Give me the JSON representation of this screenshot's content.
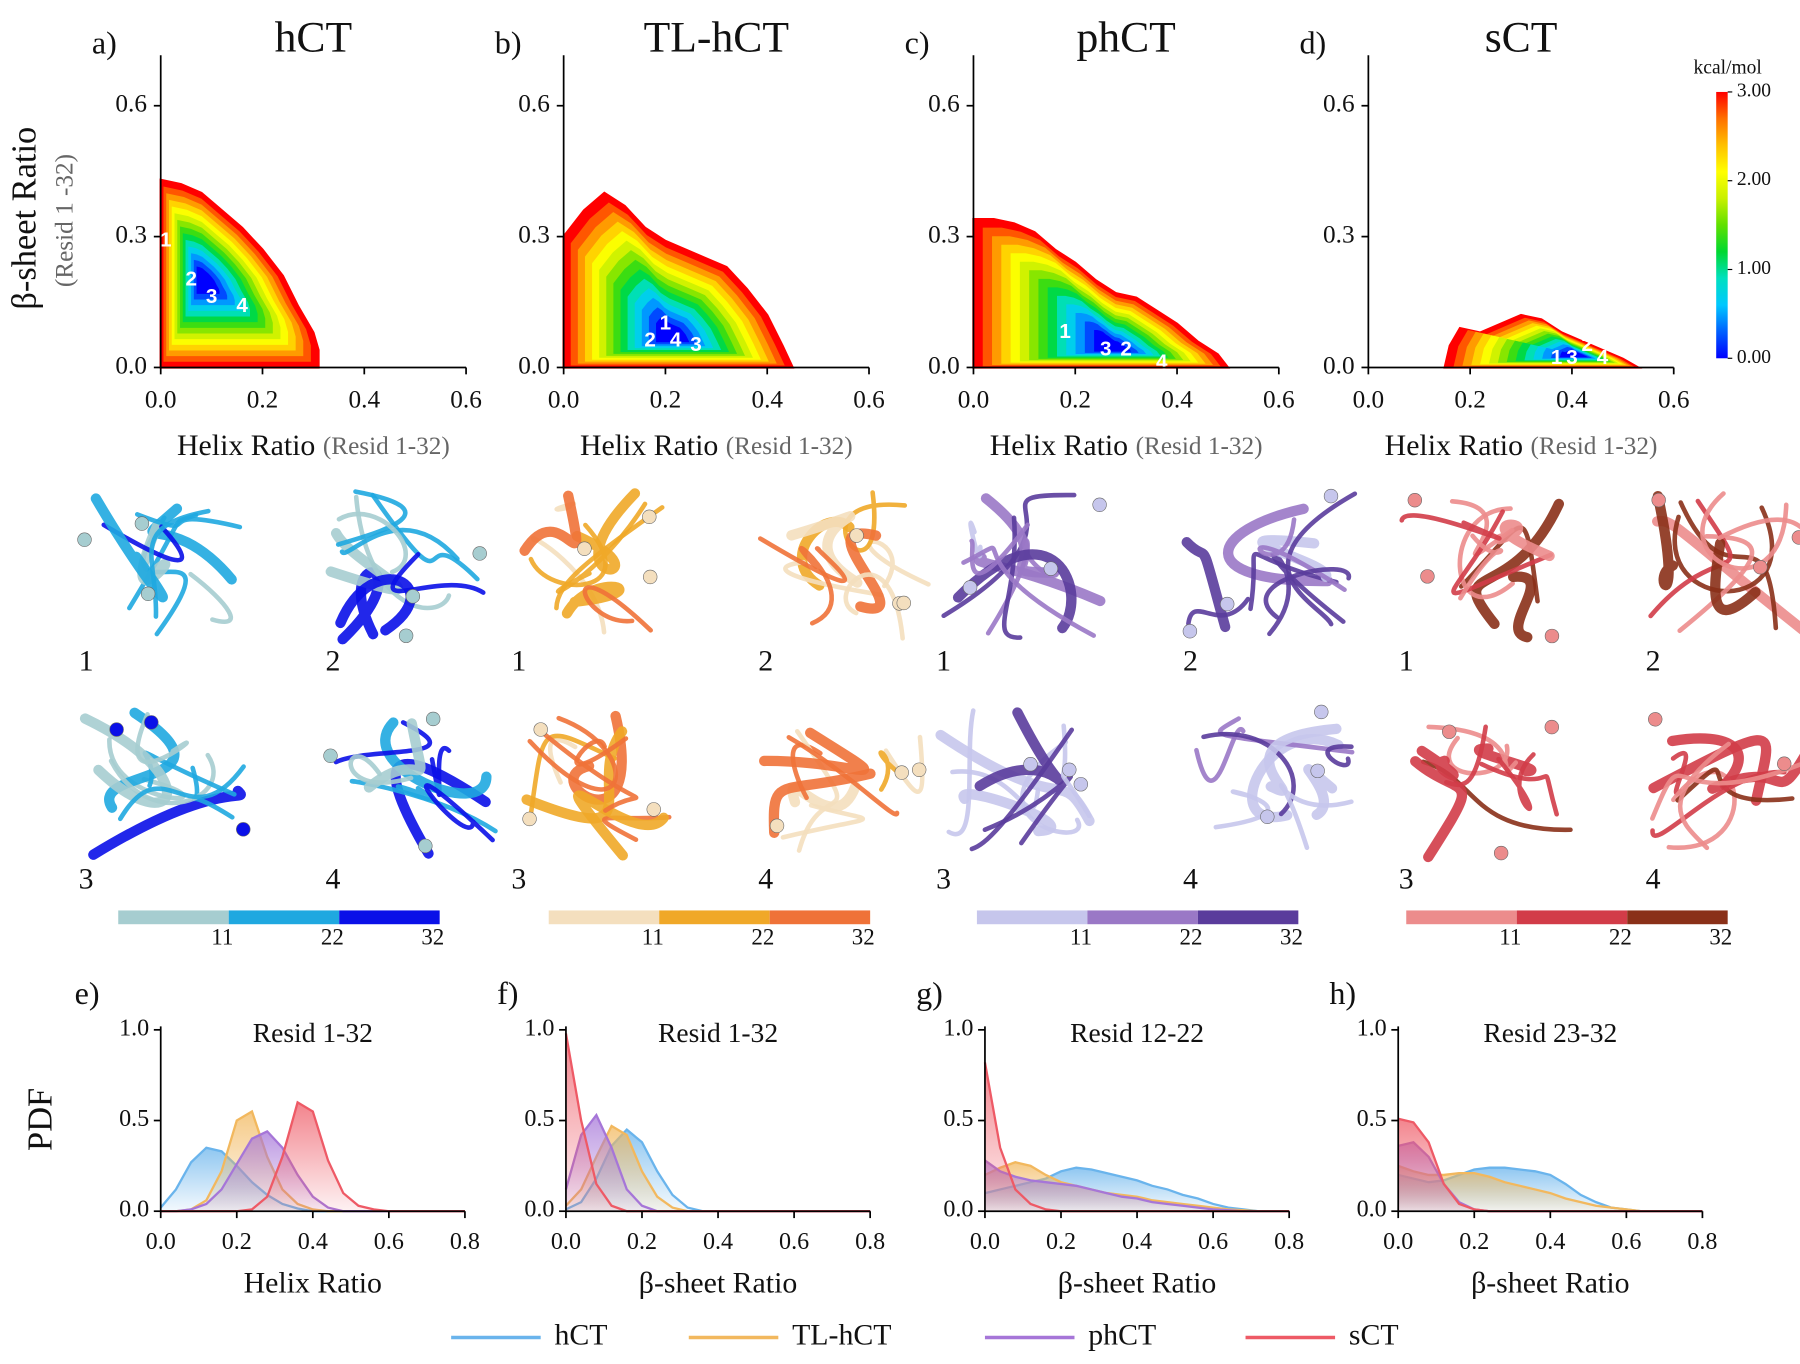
{
  "chart_data": [
    {
      "type": "contour",
      "xlabel": "Helix Ratio",
      "xlabel_note": "(Resid 1-32)",
      "ylabel": "β-sheet Ratio",
      "ylabel_note": "(Resid 1 -32)",
      "xlim": [
        0,
        0.6
      ],
      "ylim": [
        0,
        0.7
      ],
      "xticks": [
        {
          "value": 0,
          "label": "0.0"
        },
        0.2,
        0.4,
        0.6
      ],
      "yticks": [
        {
          "value": 0,
          "label": "0.0"
        },
        0.3,
        0.6
      ],
      "colorbar": {
        "label": "kcal/mol",
        "lim": [
          0,
          3
        ],
        "ticks": [
          {
            "value": 0,
            "label": "0.00"
          },
          {
            "value": 1,
            "label": "1.00"
          },
          {
            "value": 2,
            "label": "2.00"
          },
          {
            "value": 3,
            "label": "3.00"
          }
        ],
        "colormap": [
          "#0000ff",
          "#0060ff",
          "#00c8ff",
          "#00e0c0",
          "#00d830",
          "#60e000",
          "#c8f000",
          "#ffff00",
          "#ffc000",
          "#ff7000",
          "#ff0000"
        ]
      },
      "panels": [
        {
          "label": "a)",
          "title": "hCT",
          "boundary": [
            [
              0,
              0.43
            ],
            [
              0.04,
              0.42
            ],
            [
              0.08,
              0.4
            ],
            [
              0.12,
              0.36
            ],
            [
              0.16,
              0.32
            ],
            [
              0.2,
              0.27
            ],
            [
              0.24,
              0.21
            ],
            [
              0.27,
              0.14
            ],
            [
              0.3,
              0.08
            ],
            [
              0.31,
              0.04
            ],
            [
              0.31,
              0
            ],
            [
              0,
              0
            ]
          ],
          "minima": [
            {
              "label": "1",
              "x": 0.01,
              "y": 0.29
            },
            {
              "label": "2",
              "x": 0.06,
              "y": 0.2
            },
            {
              "label": "3",
              "x": 0.1,
              "y": 0.16
            },
            {
              "label": "4",
              "x": 0.16,
              "y": 0.14
            }
          ]
        },
        {
          "label": "b)",
          "title": "TL-hCT",
          "boundary": [
            [
              0,
              0.3
            ],
            [
              0.04,
              0.36
            ],
            [
              0.08,
              0.4
            ],
            [
              0.12,
              0.37
            ],
            [
              0.16,
              0.32
            ],
            [
              0.2,
              0.29
            ],
            [
              0.24,
              0.27
            ],
            [
              0.28,
              0.25
            ],
            [
              0.32,
              0.23
            ],
            [
              0.36,
              0.18
            ],
            [
              0.4,
              0.12
            ],
            [
              0.43,
              0.05
            ],
            [
              0.45,
              0
            ],
            [
              0,
              0
            ]
          ],
          "minima": [
            {
              "label": "1",
              "x": 0.2,
              "y": 0.1
            },
            {
              "label": "2",
              "x": 0.17,
              "y": 0.06
            },
            {
              "label": "4",
              "x": 0.22,
              "y": 0.06
            },
            {
              "label": "3",
              "x": 0.26,
              "y": 0.05
            }
          ]
        },
        {
          "label": "c)",
          "title": "phCT",
          "boundary": [
            [
              0,
              0.34
            ],
            [
              0.04,
              0.34
            ],
            [
              0.08,
              0.33
            ],
            [
              0.12,
              0.31
            ],
            [
              0.16,
              0.27
            ],
            [
              0.2,
              0.24
            ],
            [
              0.24,
              0.2
            ],
            [
              0.28,
              0.17
            ],
            [
              0.32,
              0.16
            ],
            [
              0.36,
              0.13
            ],
            [
              0.4,
              0.1
            ],
            [
              0.44,
              0.06
            ],
            [
              0.48,
              0.03
            ],
            [
              0.5,
              0
            ],
            [
              0,
              0
            ]
          ],
          "minima": [
            {
              "label": "1",
              "x": 0.18,
              "y": 0.08
            },
            {
              "label": "3",
              "x": 0.26,
              "y": 0.04
            },
            {
              "label": "2",
              "x": 0.3,
              "y": 0.04
            },
            {
              "label": "4",
              "x": 0.37,
              "y": 0.01
            }
          ]
        },
        {
          "label": "d)",
          "title": "sCT",
          "boundary": [
            [
              0.15,
              0
            ],
            [
              0.16,
              0.05
            ],
            [
              0.18,
              0.09
            ],
            [
              0.22,
              0.08
            ],
            [
              0.26,
              0.1
            ],
            [
              0.3,
              0.12
            ],
            [
              0.34,
              0.11
            ],
            [
              0.38,
              0.08
            ],
            [
              0.42,
              0.06
            ],
            [
              0.46,
              0.04
            ],
            [
              0.5,
              0.02
            ],
            [
              0.53,
              0
            ]
          ],
          "minima": [
            {
              "label": "1",
              "x": 0.37,
              "y": 0.02
            },
            {
              "label": "3",
              "x": 0.4,
              "y": 0.02
            },
            {
              "label": "2",
              "x": 0.43,
              "y": 0.05
            },
            {
              "label": "4",
              "x": 0.46,
              "y": 0.02
            }
          ]
        }
      ]
    },
    {
      "type": "structures",
      "labels": [
        "1",
        "2",
        "3",
        "4"
      ],
      "residue_lim": [
        0,
        32
      ],
      "residue_ticks": [
        11,
        22,
        32
      ],
      "panels": [
        {
          "colors": [
            "#a6cdd0",
            "#1fa8e0",
            "#0a10e8"
          ]
        },
        {
          "colors": [
            "#f4dfbe",
            "#f0a828",
            "#ef7238"
          ]
        },
        {
          "colors": [
            "#c6c6ec",
            "#9a78c6",
            "#5a3c9c"
          ]
        },
        {
          "colors": [
            "#ec8c8c",
            "#d23c48",
            "#8a3018"
          ]
        }
      ]
    },
    {
      "type": "area",
      "ylabel": "PDF",
      "xlim": [
        0,
        0.8
      ],
      "ylim": [
        0,
        1
      ],
      "xticks": [
        {
          "value": 0,
          "label": "0.0"
        },
        0.2,
        0.4,
        0.6,
        0.8
      ],
      "yticks": [
        {
          "value": 0,
          "label": "0.0"
        },
        0.5,
        {
          "value": 1,
          "label": "1.0"
        }
      ],
      "x": [
        0,
        0.04,
        0.08,
        0.12,
        0.16,
        0.2,
        0.24,
        0.28,
        0.32,
        0.36,
        0.4,
        0.44,
        0.48,
        0.52,
        0.56,
        0.6,
        0.64,
        0.68,
        0.72,
        0.76,
        0.8
      ],
      "series": [
        {
          "name": "hCT",
          "color": "#6ab4ec"
        },
        {
          "name": "TL-hCT",
          "color": "#f2b85e"
        },
        {
          "name": "phCT",
          "color": "#a676d8"
        },
        {
          "name": "sCT",
          "color": "#ee5a66"
        }
      ],
      "panels": [
        {
          "label": "e)",
          "title": "Resid 1-32",
          "xlabel": "Helix Ratio",
          "values": [
            [
              0.02,
              0.12,
              0.27,
              0.35,
              0.33,
              0.25,
              0.16,
              0.09,
              0.04,
              0.015,
              0,
              0,
              0,
              0,
              0,
              0,
              0,
              0,
              0,
              0,
              0
            ],
            [
              0,
              0,
              0.01,
              0.06,
              0.22,
              0.5,
              0.55,
              0.3,
              0.12,
              0.04,
              0.01,
              0,
              0,
              0,
              0,
              0,
              0,
              0,
              0,
              0,
              0
            ],
            [
              0,
              0,
              0.01,
              0.04,
              0.12,
              0.26,
              0.4,
              0.44,
              0.35,
              0.2,
              0.08,
              0.02,
              0,
              0,
              0,
              0,
              0,
              0,
              0,
              0,
              0
            ],
            [
              0,
              0,
              0,
              0,
              0,
              0,
              0.01,
              0.08,
              0.3,
              0.6,
              0.55,
              0.28,
              0.1,
              0.03,
              0.01,
              0,
              0,
              0,
              0,
              0,
              0
            ]
          ]
        },
        {
          "label": "f)",
          "title": "Resid 1-32",
          "xlabel": "β-sheet Ratio",
          "values": [
            [
              0.01,
              0.05,
              0.18,
              0.36,
              0.45,
              0.38,
              0.22,
              0.09,
              0.02,
              0,
              0,
              0,
              0,
              0,
              0,
              0,
              0,
              0,
              0,
              0,
              0
            ],
            [
              0.03,
              0.12,
              0.3,
              0.47,
              0.42,
              0.22,
              0.08,
              0.02,
              0,
              0,
              0,
              0,
              0,
              0,
              0,
              0,
              0,
              0,
              0,
              0,
              0
            ],
            [
              0.12,
              0.42,
              0.53,
              0.35,
              0.12,
              0.03,
              0,
              0,
              0,
              0,
              0,
              0,
              0,
              0,
              0,
              0,
              0,
              0,
              0,
              0,
              0
            ],
            [
              0.98,
              0.5,
              0.15,
              0.03,
              0,
              0,
              0,
              0,
              0,
              0,
              0,
              0,
              0,
              0,
              0,
              0,
              0,
              0,
              0,
              0,
              0
            ]
          ]
        },
        {
          "label": "g)",
          "title": "Resid 12-22",
          "xlabel": "β-sheet Ratio",
          "values": [
            [
              0.1,
              0.12,
              0.14,
              0.16,
              0.18,
              0.22,
              0.24,
              0.23,
              0.21,
              0.19,
              0.17,
              0.14,
              0.12,
              0.09,
              0.07,
              0.04,
              0.02,
              0.01,
              0,
              0,
              0
            ],
            [
              0.2,
              0.24,
              0.27,
              0.25,
              0.2,
              0.16,
              0.14,
              0.12,
              0.1,
              0.09,
              0.08,
              0.06,
              0.05,
              0.04,
              0.03,
              0.02,
              0.01,
              0.005,
              0,
              0,
              0
            ],
            [
              0.28,
              0.22,
              0.19,
              0.17,
              0.16,
              0.15,
              0.14,
              0.12,
              0.1,
              0.08,
              0.07,
              0.05,
              0.04,
              0.03,
              0.02,
              0.01,
              0.005,
              0,
              0,
              0,
              0
            ],
            [
              0.82,
              0.35,
              0.12,
              0.04,
              0.01,
              0,
              0,
              0,
              0,
              0,
              0,
              0,
              0,
              0,
              0,
              0,
              0,
              0,
              0,
              0,
              0
            ]
          ]
        },
        {
          "label": "h)",
          "title": "Resid 23-32",
          "xlabel": "β-sheet Ratio",
          "values": [
            [
              0.2,
              0.18,
              0.16,
              0.17,
              0.2,
              0.23,
              0.24,
              0.24,
              0.23,
              0.22,
              0.2,
              0.15,
              0.09,
              0.05,
              0.02,
              0.01,
              0,
              0,
              0,
              0,
              0
            ],
            [
              0.25,
              0.22,
              0.2,
              0.2,
              0.21,
              0.21,
              0.19,
              0.16,
              0.14,
              0.12,
              0.1,
              0.07,
              0.05,
              0.03,
              0.02,
              0.01,
              0,
              0,
              0,
              0,
              0
            ],
            [
              0.36,
              0.38,
              0.3,
              0.15,
              0.05,
              0.01,
              0,
              0,
              0,
              0,
              0,
              0,
              0,
              0,
              0,
              0,
              0,
              0,
              0,
              0,
              0
            ],
            [
              0.51,
              0.49,
              0.38,
              0.15,
              0.04,
              0.01,
              0,
              0,
              0,
              0,
              0,
              0,
              0,
              0,
              0,
              0,
              0,
              0,
              0,
              0,
              0
            ]
          ]
        }
      ]
    }
  ]
}
